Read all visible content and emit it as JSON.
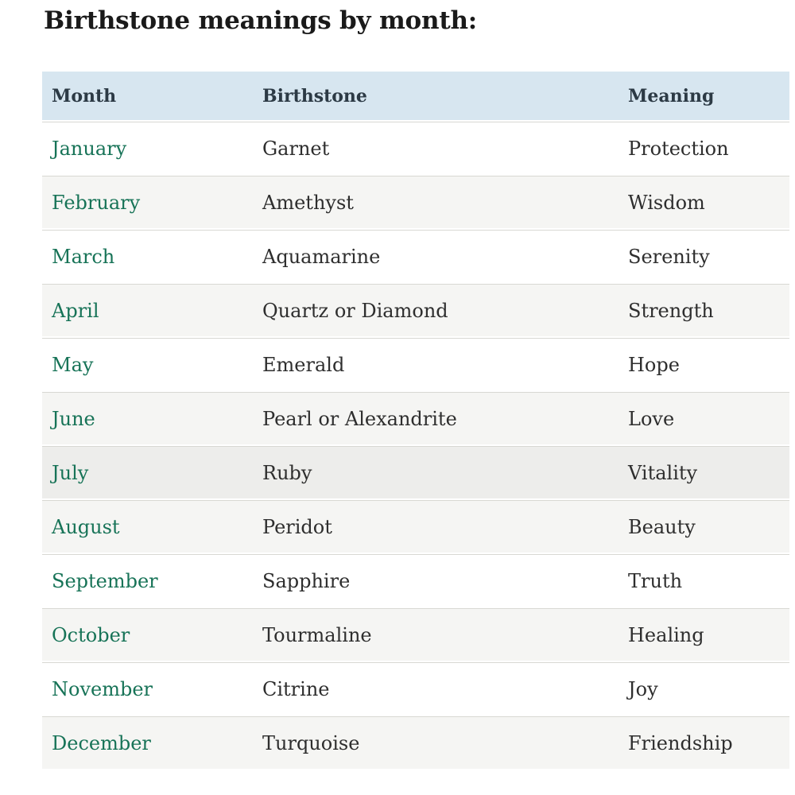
{
  "page": {
    "title": "Birthstone meanings by month:"
  },
  "table": {
    "columns": [
      "Month",
      "Birthstone",
      "Meaning"
    ],
    "rows": [
      {
        "month": "January",
        "birthstone": "Garnet",
        "meaning": "Protection",
        "highlight": false
      },
      {
        "month": "February",
        "birthstone": "Amethyst",
        "meaning": "Wisdom",
        "highlight": false
      },
      {
        "month": "March",
        "birthstone": "Aquamarine",
        "meaning": "Serenity",
        "highlight": false
      },
      {
        "month": "April",
        "birthstone": "Quartz or Diamond",
        "meaning": "Strength",
        "highlight": false
      },
      {
        "month": "May",
        "birthstone": "Emerald",
        "meaning": "Hope",
        "highlight": false
      },
      {
        "month": "June",
        "birthstone": "Pearl or Alexandrite",
        "meaning": "Love",
        "highlight": false
      },
      {
        "month": "July",
        "birthstone": "Ruby",
        "meaning": "Vitality",
        "highlight": true
      },
      {
        "month": "August",
        "birthstone": "Peridot",
        "meaning": "Beauty",
        "highlight": false
      },
      {
        "month": "September",
        "birthstone": "Sapphire",
        "meaning": "Truth",
        "highlight": false
      },
      {
        "month": "October",
        "birthstone": "Tourmaline",
        "meaning": "Healing",
        "highlight": false
      },
      {
        "month": "November",
        "birthstone": "Citrine",
        "meaning": "Joy",
        "highlight": false
      },
      {
        "month": "December",
        "birthstone": "Turquoise",
        "meaning": "Friendship",
        "highlight": false
      }
    ]
  },
  "colors": {
    "header_background": "#d7e6f0",
    "header_text": "#2c3a45",
    "month_link_green": "#177357",
    "body_text": "#2e2e2e",
    "stripe_row": "#f5f5f3",
    "highlight_row": "#ededeb",
    "row_border": "#d8d8d3",
    "title_text": "#1a1a1a"
  }
}
